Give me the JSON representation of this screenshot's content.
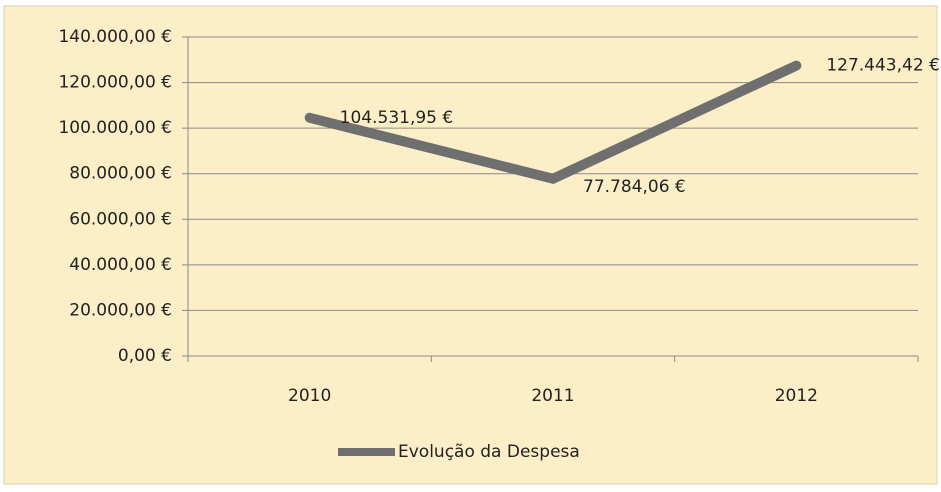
{
  "chart_data": {
    "type": "line",
    "categories": [
      "2010",
      "2011",
      "2012"
    ],
    "series": [
      {
        "name": "Evolução da Despesa",
        "color": "#6f6f6f",
        "values": [
          104531.95,
          77784.06,
          127443.42
        ],
        "value_labels": [
          "104.531,95 €",
          "77.784,06 €",
          "127.443,42 €"
        ]
      }
    ],
    "ylim": [
      0,
      140000
    ],
    "yticks": [
      {
        "value": 0,
        "label": "0,00 €"
      },
      {
        "value": 20000,
        "label": "20.000,00 €"
      },
      {
        "value": 40000,
        "label": "40.000,00 €"
      },
      {
        "value": 60000,
        "label": "60.000,00 €"
      },
      {
        "value": 80000,
        "label": "80.000,00 €"
      },
      {
        "value": 100000,
        "label": "100.000,00 €"
      },
      {
        "value": 120000,
        "label": "120.000,00 €"
      },
      {
        "value": 140000,
        "label": "140.000,00 €"
      }
    ],
    "grid": true,
    "legend": "bottom"
  }
}
